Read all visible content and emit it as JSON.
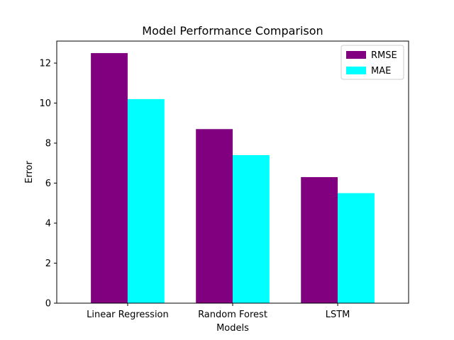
{
  "chart_data": {
    "type": "bar",
    "title": "Model Performance Comparison",
    "xlabel": "Models",
    "ylabel": "Error",
    "categories": [
      "Linear Regression",
      "Random Forest",
      "LSTM"
    ],
    "series": [
      {
        "name": "RMSE",
        "values": [
          12.5,
          8.7,
          6.3
        ],
        "color": "#800080"
      },
      {
        "name": "MAE",
        "values": [
          10.2,
          7.4,
          5.5
        ],
        "color": "#00ffff"
      }
    ],
    "ylim": [
      0,
      13.1
    ],
    "yticks": [
      0,
      2,
      4,
      6,
      8,
      10,
      12
    ],
    "grid": false,
    "legend": "top-right"
  }
}
